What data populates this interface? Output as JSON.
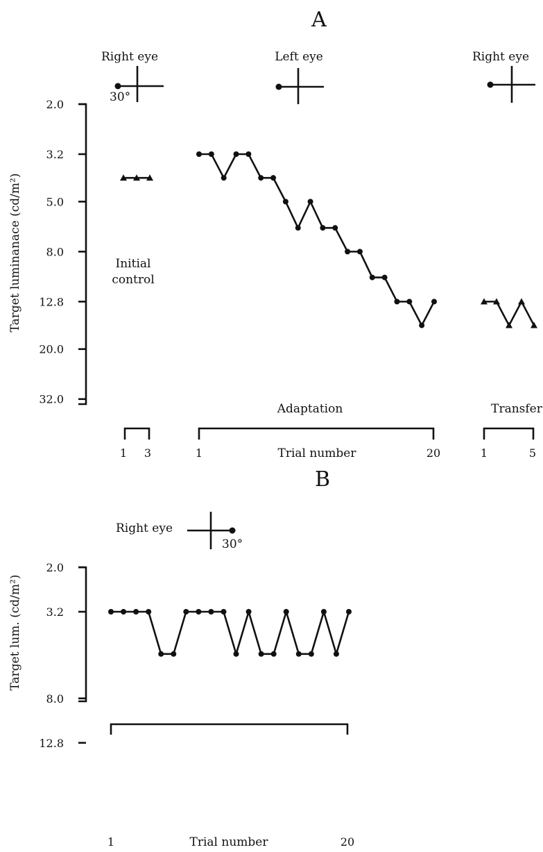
{
  "chart_data": [
    {
      "type": "line",
      "panel": "A",
      "ylabel": "Target luminanace (cd/m²)",
      "y_scale": "log",
      "y_inverted": true,
      "y_ticks": [
        "2.0",
        "3.2",
        "5.0",
        "8.0",
        "12.8",
        "20.0",
        "32.0"
      ],
      "eye_labels": [
        "Right eye",
        "Left eye",
        "Right eye"
      ],
      "angle_label": "30°",
      "segments": [
        {
          "name": "Initial control",
          "bracket_start": "1",
          "bracket_end": "3",
          "marker": "triangle",
          "x": [
            1,
            2,
            3
          ],
          "y": [
            4.0,
            4.0,
            4.0
          ]
        },
        {
          "name": "Adaptation",
          "bracket_start": "1",
          "bracket_end": "20",
          "marker": "circle",
          "x": [
            1,
            2,
            3,
            4,
            5,
            6,
            7,
            8,
            9,
            10,
            11,
            12,
            13,
            14,
            15,
            16,
            17,
            18,
            19,
            20
          ],
          "y": [
            3.2,
            3.2,
            4.0,
            3.2,
            3.2,
            4.0,
            4.0,
            5.0,
            6.4,
            5.0,
            6.4,
            6.4,
            8.0,
            8.0,
            10.2,
            10.2,
            12.8,
            12.8,
            16.0,
            12.8
          ]
        },
        {
          "name": "Transfer",
          "bracket_start": "1",
          "bracket_end": "5",
          "marker": "triangle",
          "x": [
            1,
            2,
            3,
            4,
            5
          ],
          "y": [
            12.8,
            12.8,
            16.0,
            12.8,
            16.0
          ]
        }
      ],
      "xlabel": "Trial number"
    },
    {
      "type": "line",
      "panel": "B",
      "ylabel": "Target lum. (cd/m²)",
      "y_scale": "log",
      "y_inverted": true,
      "y_ticks": [
        "2.0",
        "3.2",
        "8.0",
        "12.8"
      ],
      "eye_label": "Right eye",
      "angle_label": "30°",
      "series": [
        {
          "marker": "circle",
          "x": [
            1,
            2,
            3,
            4,
            5,
            6,
            7,
            8,
            9,
            10,
            11,
            12,
            13,
            14,
            15,
            16,
            17,
            18,
            19,
            20
          ],
          "y": [
            3.2,
            3.2,
            3.2,
            3.2,
            5.0,
            5.0,
            3.2,
            3.2,
            3.2,
            3.2,
            5.0,
            3.2,
            5.0,
            5.0,
            3.2,
            5.0,
            5.0,
            3.2,
            5.0,
            3.2
          ]
        }
      ],
      "bracket_start": "1",
      "bracket_end": "20",
      "xlabel": "Trial number"
    }
  ]
}
